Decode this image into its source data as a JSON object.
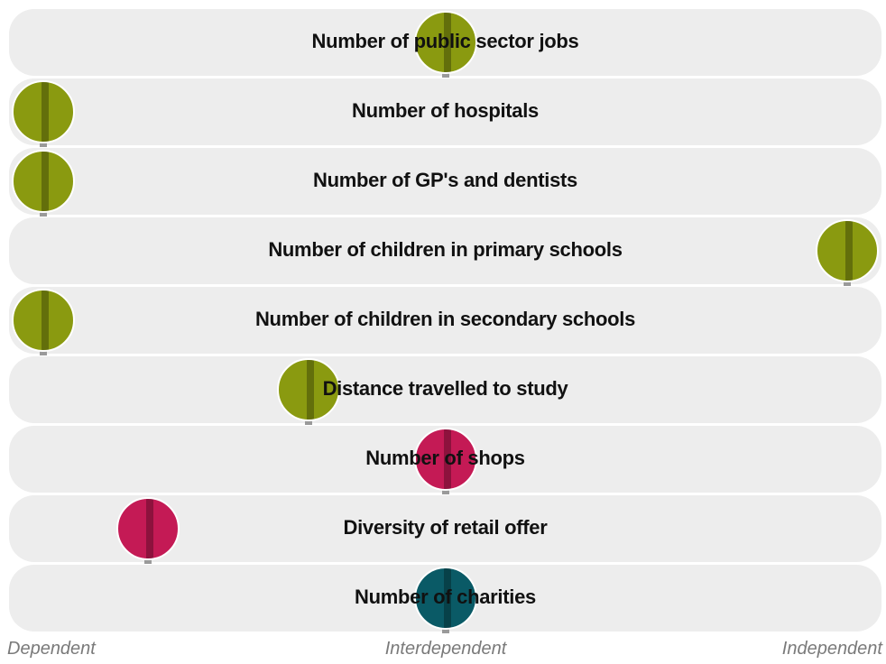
{
  "chart_data": {
    "type": "scatter",
    "scale": {
      "min": 0,
      "max": 1,
      "labels": [
        "Dependent",
        "Interdependent",
        "Independent"
      ]
    },
    "categories": [
      "Number of public sector jobs",
      "Number of hospitals",
      "Number of GP's and dentists",
      "Number of children in primary schools",
      "Number of children in secondary schools",
      "Distance travelled to study",
      "Number of shops",
      "Diversity of retail offer",
      "Number of charities"
    ],
    "values": [
      0.5,
      0.0,
      0.0,
      1.0,
      0.0,
      0.33,
      0.5,
      0.13,
      0.5
    ],
    "point_colors": [
      "#8a9a10",
      "#8a9a10",
      "#8a9a10",
      "#8a9a10",
      "#8a9a10",
      "#8a9a10",
      "#c41a55",
      "#c41a55",
      "#0a5a66"
    ],
    "row_background": "#ededed"
  }
}
